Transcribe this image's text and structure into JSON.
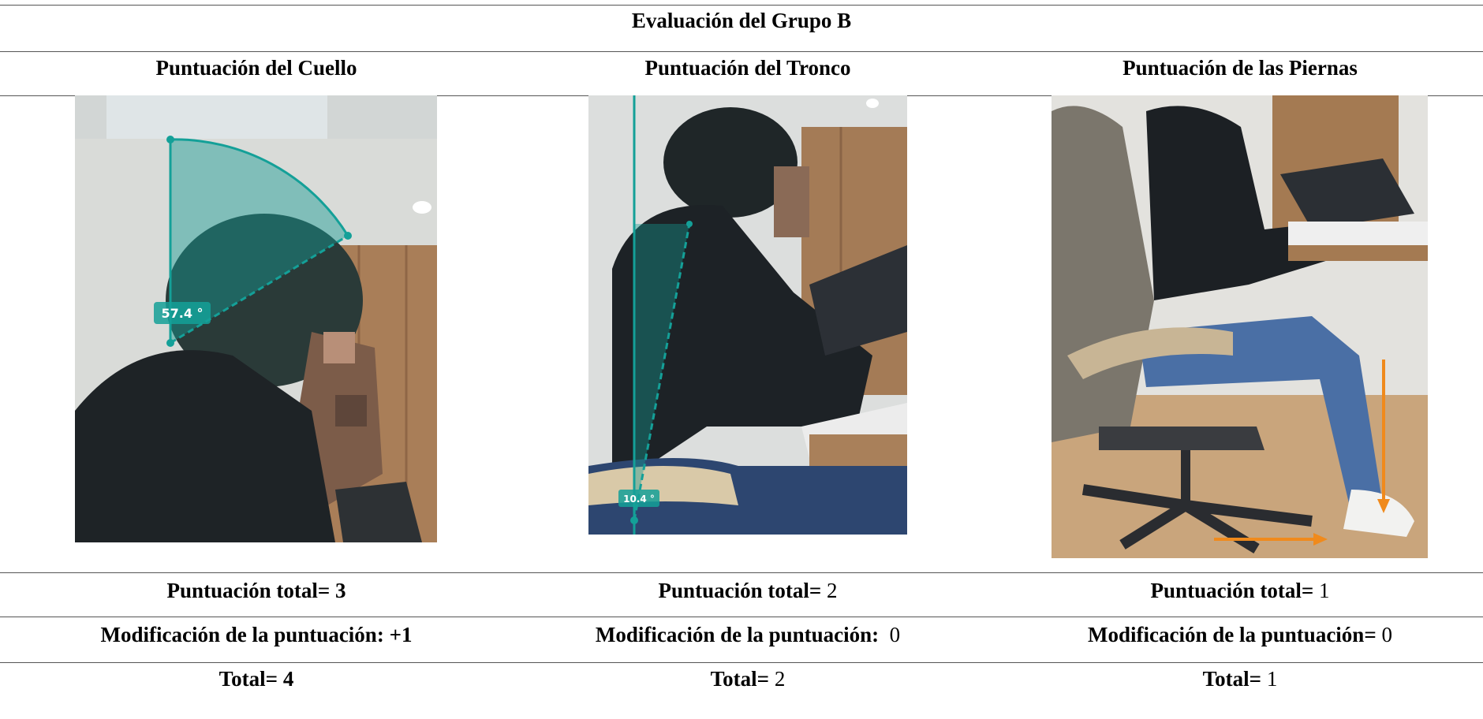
{
  "title": "Evaluación del Grupo B",
  "columns": [
    {
      "header": "Puntuación del Cuello",
      "angle_label": "57.4 °",
      "total": {
        "label": "Puntuación total=",
        "value": "3"
      },
      "modification": {
        "label": "Modificación de la puntuación:",
        "value": "+1"
      },
      "final": {
        "label": "Total=",
        "value": "4"
      }
    },
    {
      "header": "Puntuación del Tronco",
      "angle_label": "10.4 °",
      "total": {
        "label": "Puntuación total=",
        "value": "2"
      },
      "modification": {
        "label": "Modificación de la puntuación:",
        "value": "0"
      },
      "final": {
        "label": "Total=",
        "value": "2"
      }
    },
    {
      "header": "Puntuación de las Piernas",
      "total": {
        "label": "Puntuación total=",
        "value": "1"
      },
      "modification": {
        "label": "Modificación de la puntuación=",
        "value": "0"
      },
      "final": {
        "label": "Total=",
        "value": "1"
      }
    }
  ]
}
